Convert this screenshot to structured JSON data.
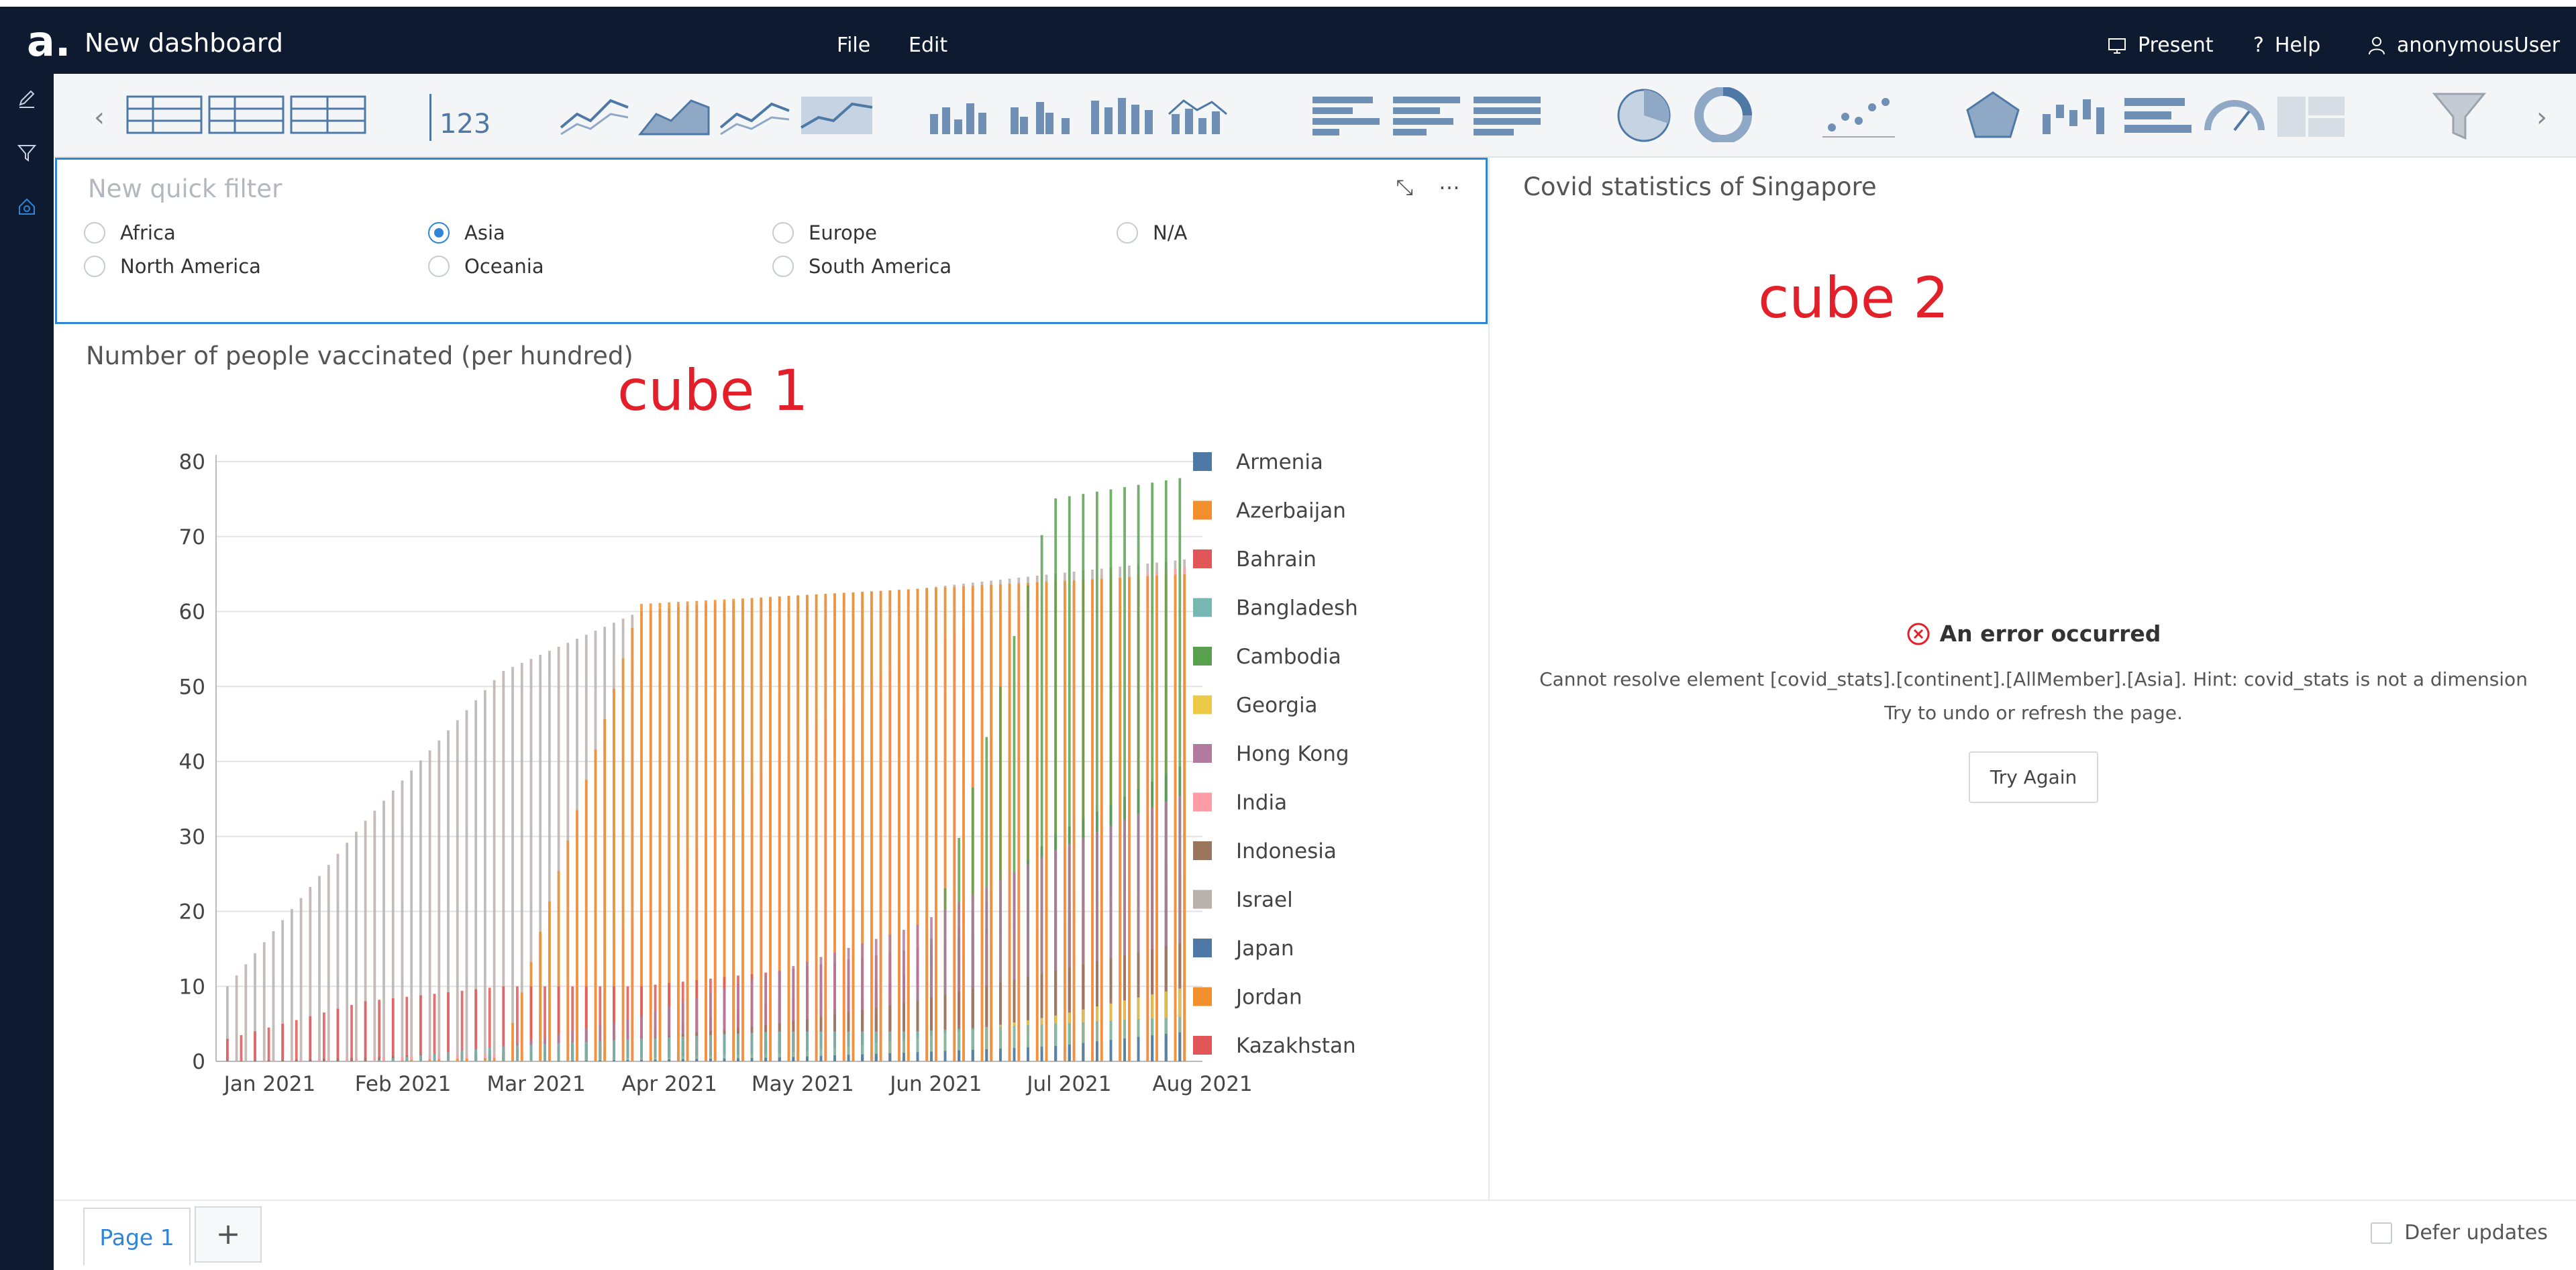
{
  "app": {
    "title": "New dashboard"
  },
  "menu": {
    "file": "File",
    "edit": "Edit"
  },
  "top_right": {
    "present": "Present",
    "help": "Help",
    "user": "anonymousUser"
  },
  "toolbar": {
    "kpi_label": "123",
    "icons": [
      "table-icon",
      "pivot-table-icon",
      "list-table-icon",
      "kpi-icon",
      "line-chart-icon",
      "area-chart-icon",
      "multi-line-chart-icon",
      "filled-area-chart-icon",
      "column-chart-icon",
      "grouped-column-chart-icon",
      "stacked-column-chart-icon",
      "combo-chart-icon",
      "bar-chart-icon",
      "horizontal-bar-chart-icon",
      "stacked-bar-chart-icon",
      "pie-chart-icon",
      "donut-chart-icon",
      "scatter-chart-icon",
      "radar-chart-icon",
      "waterfall-chart-icon",
      "bullet-chart-icon",
      "gauge-icon",
      "layout-icon",
      "filter-funnel-icon"
    ]
  },
  "filter": {
    "title": "New quick filter",
    "options": [
      {
        "label": "Africa",
        "checked": false
      },
      {
        "label": "Asia",
        "checked": true
      },
      {
        "label": "Europe",
        "checked": false
      },
      {
        "label": "N/A",
        "checked": false
      },
      {
        "label": "North America",
        "checked": false
      },
      {
        "label": "Oceania",
        "checked": false
      },
      {
        "label": "South America",
        "checked": false
      }
    ]
  },
  "chart_panel": {
    "title": "Number of people vaccinated (per hundred)",
    "annotation": "cube 1"
  },
  "right_panel": {
    "title": "Covid statistics of Singapore",
    "annotation": "cube 2",
    "error_title": "An error occurred",
    "error_message": "Cannot resolve element [covid_stats].[continent].[AllMember].[Asia]. Hint: covid_stats is not a dimension",
    "error_hint": "Try to undo or refresh the page.",
    "try_again": "Try Again"
  },
  "footer": {
    "page_tab": "Page 1",
    "add_page": "+",
    "defer_updates": "Defer updates"
  },
  "colors": {
    "accent": "#2f86d6",
    "nav_bg": "#0e1a30",
    "annotation": "#e3202a",
    "error": "#e3202a"
  },
  "chart_data": {
    "type": "bar",
    "title": "Number of people vaccinated (per hundred)",
    "xlabel": "",
    "ylabel": "",
    "x_ticks": [
      "Jan 2021",
      "Feb 2021",
      "Mar 2021",
      "Apr 2021",
      "May 2021",
      "Jun 2021",
      "Jul 2021",
      "Aug 2021"
    ],
    "ylim": [
      0,
      80
    ],
    "y_ticks": [
      0,
      10,
      20,
      30,
      40,
      50,
      60,
      70,
      80
    ],
    "grid": true,
    "legend_position": "right",
    "series": [
      {
        "name": "Armenia",
        "color": "#4e79a7",
        "values": [
          0,
          0,
          0,
          0.2,
          0.5,
          1.2,
          2.0,
          4.0
        ]
      },
      {
        "name": "Azerbaijan",
        "color": "#f28e2b",
        "values": [
          0,
          0,
          0.5,
          61,
          62,
          63,
          64,
          65
        ]
      },
      {
        "name": "Bahrain",
        "color": "#e15759",
        "values": [
          3,
          8,
          10,
          10,
          12,
          15,
          20,
          28
        ]
      },
      {
        "name": "Bangladesh",
        "color": "#76b7b2",
        "values": [
          0,
          0,
          2,
          3,
          4,
          4,
          5,
          6
        ]
      },
      {
        "name": "Cambodia",
        "color": "#59a14f",
        "values": [
          0,
          0,
          1,
          2,
          3,
          8,
          75,
          78
        ]
      },
      {
        "name": "Georgia",
        "color": "#edc948",
        "values": [
          0,
          0,
          0,
          0.5,
          1,
          3,
          6,
          10
        ]
      },
      {
        "name": "Hong Kong",
        "color": "#b07aa1",
        "values": [
          0,
          0,
          2,
          6,
          12,
          18,
          28,
          36
        ]
      },
      {
        "name": "India",
        "color": "#ff9da7",
        "values": [
          0,
          0.5,
          1,
          20,
          41,
          55,
          63,
          66
        ]
      },
      {
        "name": "Indonesia",
        "color": "#9c755f",
        "values": [
          0,
          0.5,
          1.5,
          3,
          5,
          8,
          12,
          16
        ]
      },
      {
        "name": "Israel",
        "color": "#bab0ac",
        "values": [
          10,
          32,
          52,
          60,
          62,
          63,
          65,
          67
        ]
      },
      {
        "name": "Japan",
        "color": "#4e79a7",
        "values": [
          0,
          0,
          0,
          0.5,
          3,
          12,
          30,
          40
        ]
      },
      {
        "name": "Jordan",
        "color": "#f28e2b",
        "values": [
          0,
          0,
          1,
          3,
          5,
          10,
          20,
          25
        ]
      },
      {
        "name": "Kazakhstan",
        "color": "#e15759",
        "values": [
          0,
          0,
          1,
          4,
          8,
          12,
          18,
          25
        ]
      }
    ]
  }
}
